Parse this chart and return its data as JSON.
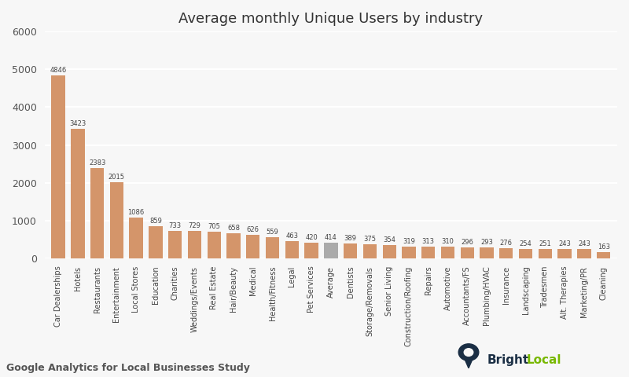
{
  "title": "Average monthly Unique Users by industry",
  "categories": [
    "Car Dealerships",
    "Hotels",
    "Restaurants",
    "Entertainment",
    "Local Stores",
    "Education",
    "Charities",
    "Weddings/Events",
    "Real Estate",
    "Hair/Beauty",
    "Medical",
    "Health/Fitness",
    "Legal",
    "Pet Services",
    "Average",
    "Dentists",
    "Storage/Removals",
    "Senior Living",
    "Construction/Roofing",
    "Repairs",
    "Automotive",
    "Accountants/FS",
    "Plumbing/HVAC",
    "Insurance",
    "Landscaping",
    "Tradesmen",
    "Alt. Therapies",
    "Marketing/PR",
    "Cleaning"
  ],
  "values": [
    4846,
    3423,
    2383,
    2015,
    1086,
    859,
    733,
    729,
    705,
    658,
    626,
    559,
    463,
    420,
    414,
    389,
    375,
    354,
    319,
    313,
    310,
    296,
    293,
    276,
    254,
    251,
    243,
    243,
    163
  ],
  "bar_color_default": "#D4956A",
  "bar_color_average": "#aaaaaa",
  "ylim": [
    0,
    6000
  ],
  "yticks": [
    0,
    1000,
    2000,
    3000,
    4000,
    5000,
    6000
  ],
  "footer_text": "Google Analytics for Local Businesses Study",
  "background_color": "#f7f7f7",
  "title_fontsize": 13,
  "label_fontsize": 7,
  "tick_fontsize": 9,
  "footer_fontsize": 9,
  "value_fontsize": 6,
  "brightlocal_green": "#78b800",
  "brightlocal_dark": "#1a2e44"
}
